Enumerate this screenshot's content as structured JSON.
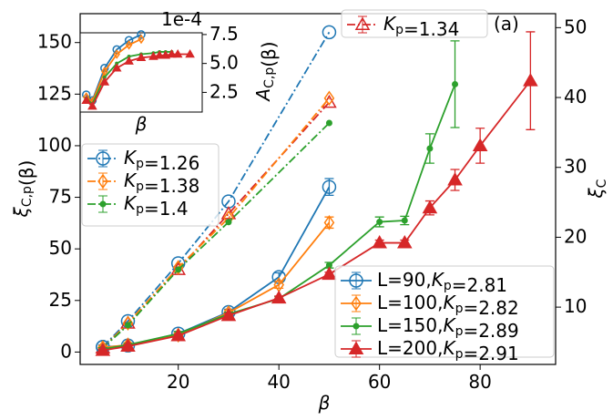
{
  "chart_data": [
    {
      "type": "line",
      "xlabel": "β",
      "ylabel": "ξC,p(β)",
      "y2label": "ξC",
      "annotation": "(a)",
      "xlim": [
        0.5,
        95
      ],
      "xticks": [
        20,
        40,
        60,
        80
      ],
      "ylim": [
        -6,
        164
      ],
      "yticks": [
        0,
        25,
        50,
        75,
        100,
        125,
        150
      ],
      "y2lim": [
        1.8,
        52
      ],
      "y2ticks": [
        10,
        20,
        30,
        40,
        50
      ],
      "series": [
        {
          "name": "Kp=1.26",
          "color": "#1f77b4",
          "marker": "open-circle",
          "linestyle": "dashdot",
          "x": [
            5,
            10,
            20,
            30,
            50
          ],
          "values": [
            2.5,
            15,
            43,
            73,
            155
          ]
        },
        {
          "name": "Kp=1.34",
          "color": "#d62728",
          "marker": "open-triangle",
          "linestyle": "dashdot",
          "x": [
            5,
            10,
            20,
            30,
            50
          ],
          "values": [
            2,
            14,
            40,
            67,
            121
          ]
        },
        {
          "name": "Kp=1.38",
          "color": "#ff7f0e",
          "marker": "open-diamond",
          "linestyle": "dashdot",
          "x": [
            5,
            10,
            20,
            30,
            50
          ],
          "values": [
            2,
            14,
            41,
            65,
            123
          ]
        },
        {
          "name": "Kp=1.4",
          "color": "#2ca02c",
          "marker": "dot",
          "linestyle": "dashdot",
          "x": [
            5,
            10,
            20,
            30,
            50
          ],
          "values": [
            2,
            13,
            40,
            63,
            111
          ]
        },
        {
          "name": "L=90,Kp=2.81",
          "axis": "y2",
          "color": "#1f77b4",
          "marker": "open-circle",
          "linestyle": "solid",
          "x": [
            5,
            10,
            20,
            30,
            40,
            50
          ],
          "values": [
            4.3,
            4.5,
            6.2,
            9.3,
            14.3,
            27.2
          ],
          "errors": [
            0.3,
            0.3,
            0.3,
            0.4,
            0.6,
            1.2
          ]
        },
        {
          "name": "L=100,Kp=2.82",
          "axis": "y2",
          "color": "#ff7f0e",
          "marker": "open-diamond",
          "linestyle": "solid",
          "x": [
            5,
            10,
            20,
            30,
            40,
            50
          ],
          "values": [
            4.2,
            4.6,
            6.0,
            9.2,
            13.2,
            22.1
          ],
          "errors": [
            0.3,
            0.3,
            0.3,
            0.4,
            0.5,
            0.8
          ]
        },
        {
          "name": "L=150,Kp=2.89",
          "axis": "y2",
          "color": "#2ca02c",
          "marker": "dot",
          "linestyle": "solid",
          "x": [
            5,
            10,
            20,
            30,
            40,
            50,
            60,
            65,
            70,
            75
          ],
          "values": [
            4.0,
            4.6,
            6.2,
            9.0,
            11.2,
            16.0,
            22.2,
            22.4,
            32.7,
            41.9
          ],
          "errors": [
            0.2,
            0.2,
            0.3,
            0.3,
            0.3,
            0.4,
            0.7,
            0.6,
            2.1,
            6.2
          ]
        },
        {
          "name": "L=200,Kp=2.91",
          "axis": "y2",
          "color": "#d62728",
          "marker": "triangle",
          "linestyle": "solid",
          "x": [
            5,
            10,
            20,
            30,
            40,
            50,
            60,
            65,
            70,
            75,
            80,
            90
          ],
          "values": [
            3.8,
            4.4,
            5.9,
            8.8,
            11.3,
            14.7,
            19.2,
            19.2,
            24.2,
            28.2,
            33.1,
            42.4
          ],
          "errors": [
            0.2,
            0.2,
            0.2,
            0.3,
            0.3,
            0.3,
            0.4,
            0.4,
            1.0,
            1.5,
            2.5,
            7.0
          ]
        }
      ]
    },
    {
      "type": "line",
      "xlabel": "β",
      "ylabel": "AC,p(β)",
      "offset_label": "1e-4",
      "xlim": [
        0,
        100
      ],
      "ylim": [
        0.8,
        7.65
      ],
      "yticks": [
        2.5,
        {
          "value": 5,
          "label": "5.0"
        },
        7.5
      ],
      "series": [
        {
          "color": "#1f77b4",
          "marker": "open-circle",
          "x": [
            5,
            10,
            20,
            30,
            40,
            50
          ],
          "values": [
            2.3,
            1.8,
            4.6,
            6.2,
            7.0,
            7.5
          ]
        },
        {
          "color": "#ff7f0e",
          "marker": "open-diamond",
          "x": [
            5,
            10,
            20,
            30,
            40,
            50
          ],
          "values": [
            2.1,
            1.7,
            4.3,
            5.8,
            6.6,
            7.1
          ]
        },
        {
          "color": "#2ca02c",
          "marker": "dot",
          "x": [
            5,
            10,
            20,
            30,
            40,
            50,
            60,
            65,
            70,
            75
          ],
          "values": [
            2.0,
            1.5,
            3.8,
            5.0,
            5.6,
            5.8,
            5.9,
            6.0,
            6.0,
            6.0
          ]
        },
        {
          "color": "#d62728",
          "marker": "triangle",
          "x": [
            5,
            10,
            20,
            30,
            40,
            50,
            60,
            65,
            70,
            75,
            80,
            90
          ],
          "values": [
            1.8,
            1.3,
            3.4,
            4.6,
            5.2,
            5.5,
            5.6,
            5.7,
            5.7,
            5.8,
            5.8,
            5.8
          ]
        }
      ]
    }
  ]
}
